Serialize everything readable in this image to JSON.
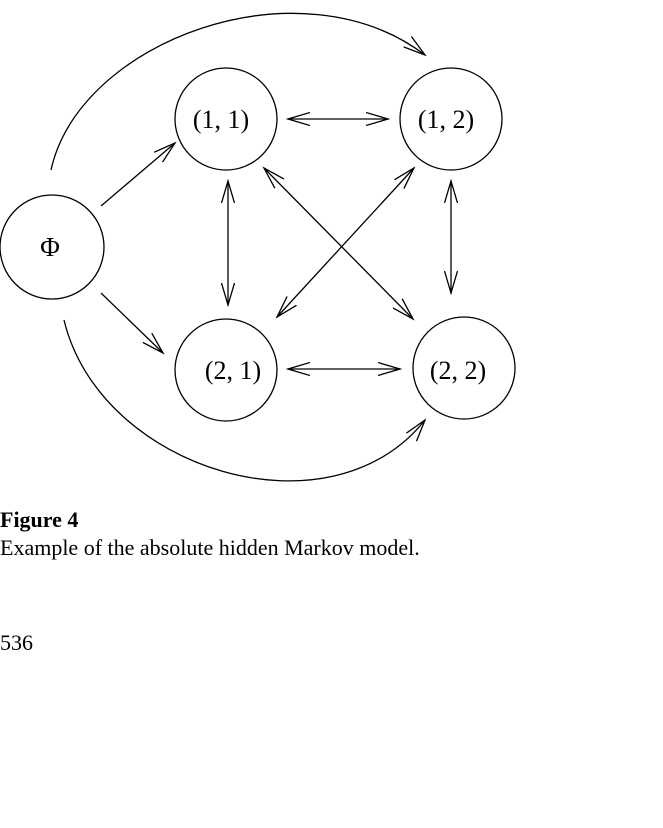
{
  "diagram": {
    "nodes": {
      "phi": "Φ",
      "n11": "(1, 1)",
      "n12": "(1, 2)",
      "n21": "(2, 1)",
      "n22": "(2, 2)"
    },
    "edges": [
      {
        "from": "Φ",
        "to": "(1, 1)",
        "direction": "one-way"
      },
      {
        "from": "Φ",
        "to": "(2, 1)",
        "direction": "one-way"
      },
      {
        "from": "Φ",
        "to": "(1, 2)",
        "direction": "one-way"
      },
      {
        "from": "Φ",
        "to": "(2, 2)",
        "direction": "one-way"
      },
      {
        "from": "(1, 1)",
        "to": "(1, 2)",
        "direction": "two-way"
      },
      {
        "from": "(2, 1)",
        "to": "(2, 2)",
        "direction": "two-way"
      },
      {
        "from": "(1, 1)",
        "to": "(2, 1)",
        "direction": "two-way"
      },
      {
        "from": "(1, 2)",
        "to": "(2, 2)",
        "direction": "two-way"
      },
      {
        "from": "(1, 1)",
        "to": "(2, 2)",
        "direction": "two-way"
      },
      {
        "from": "(1, 2)",
        "to": "(2, 1)",
        "direction": "two-way"
      }
    ]
  },
  "caption": {
    "title": "Figure 4",
    "text": "Example of the absolute hidden Markov model."
  },
  "page_number": "536"
}
